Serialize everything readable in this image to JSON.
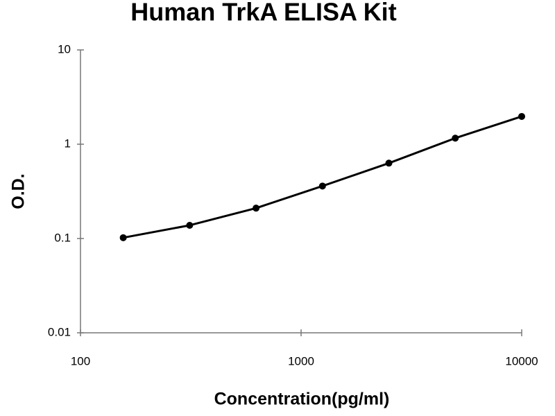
{
  "chart_data": {
    "type": "scatter",
    "title": "Human TrkA ELISA Kit",
    "x_label": "Concentration(pg/ml)",
    "y_label": "O.D.",
    "x_scale": "log",
    "y_scale": "log",
    "xlim": [
      100,
      10000
    ],
    "ylim": [
      0.01,
      10
    ],
    "xticks": [
      100,
      1000,
      10000
    ],
    "yticks": [
      0.01,
      0.1,
      1,
      10
    ],
    "grid": false,
    "series": [
      {
        "color": "#000000",
        "x": [
          156.25,
          312.5,
          625,
          1250,
          2500,
          5000,
          10000
        ],
        "values": [
          0.102,
          0.138,
          0.21,
          0.36,
          0.63,
          1.16,
          1.97
        ]
      }
    ]
  }
}
